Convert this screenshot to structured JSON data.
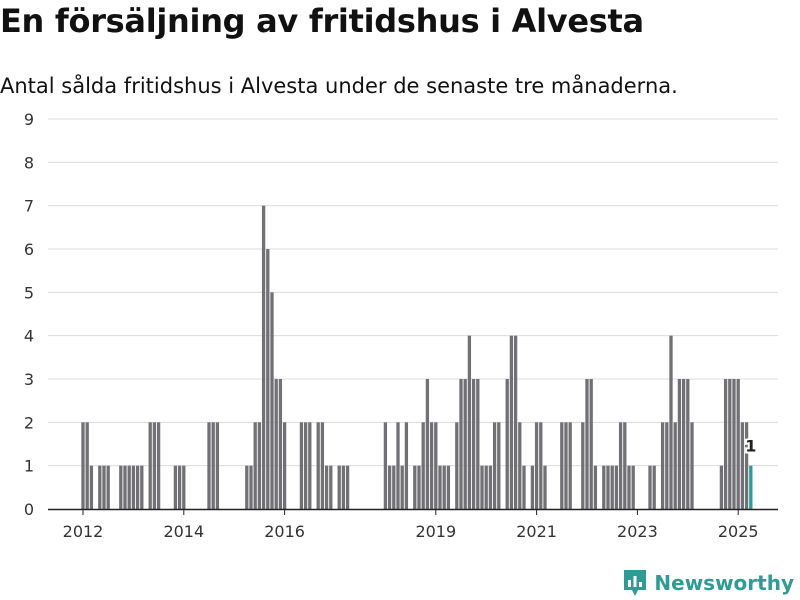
{
  "header": {
    "title": "En försäljning av fritidshus i Alvesta",
    "subtitle": "Antal sålda fritidshus i Alvesta under de senaste tre månaderna."
  },
  "brand": {
    "name": "Newsworthy",
    "icon": "chart-logo-icon",
    "color": "#2e9b95"
  },
  "chart_data": {
    "type": "bar",
    "title": "En försäljning av fritidshus i Alvesta",
    "subtitle": "Antal sålda fritidshus i Alvesta under de senaste tre månaderna.",
    "xlabel": "",
    "ylabel": "",
    "ylim": [
      0,
      9
    ],
    "yticks": [
      0,
      1,
      2,
      3,
      4,
      5,
      6,
      7,
      8,
      9
    ],
    "xticks": [
      "2012",
      "2014",
      "2016",
      "2019",
      "2021",
      "2023",
      "2025"
    ],
    "grid": true,
    "colors": {
      "bar": "#717175",
      "highlight": "#2a9d98",
      "grid": "#dcdcdc"
    },
    "highlight_label": "1",
    "series": [
      {
        "values": [
          [
            "2012-01",
            2
          ],
          [
            "2012-02",
            2
          ],
          [
            "2012-03",
            1
          ],
          [
            "2012-04",
            0
          ],
          [
            "2012-05",
            1
          ],
          [
            "2012-06",
            1
          ],
          [
            "2012-07",
            1
          ],
          [
            "2012-08",
            0
          ],
          [
            "2012-09",
            0
          ],
          [
            "2012-10",
            1
          ],
          [
            "2012-11",
            1
          ],
          [
            "2012-12",
            1
          ],
          [
            "2013-01",
            1
          ],
          [
            "2013-02",
            1
          ],
          [
            "2013-03",
            1
          ],
          [
            "2013-04",
            0
          ],
          [
            "2013-05",
            2
          ],
          [
            "2013-06",
            2
          ],
          [
            "2013-07",
            2
          ],
          [
            "2013-08",
            0
          ],
          [
            "2013-09",
            0
          ],
          [
            "2013-10",
            0
          ],
          [
            "2013-11",
            1
          ],
          [
            "2013-12",
            1
          ],
          [
            "2014-01",
            1
          ],
          [
            "2014-02",
            0
          ],
          [
            "2014-03",
            0
          ],
          [
            "2014-04",
            0
          ],
          [
            "2014-05",
            0
          ],
          [
            "2014-06",
            0
          ],
          [
            "2014-07",
            2
          ],
          [
            "2014-08",
            2
          ],
          [
            "2014-09",
            2
          ],
          [
            "2014-10",
            0
          ],
          [
            "2014-11",
            0
          ],
          [
            "2014-12",
            0
          ],
          [
            "2015-01",
            0
          ],
          [
            "2015-02",
            0
          ],
          [
            "2015-03",
            0
          ],
          [
            "2015-04",
            1
          ],
          [
            "2015-05",
            1
          ],
          [
            "2015-06",
            2
          ],
          [
            "2015-07",
            2
          ],
          [
            "2015-08",
            7
          ],
          [
            "2015-09",
            6
          ],
          [
            "2015-10",
            5
          ],
          [
            "2015-11",
            3
          ],
          [
            "2015-12",
            3
          ],
          [
            "2016-01",
            2
          ],
          [
            "2016-02",
            0
          ],
          [
            "2016-03",
            0
          ],
          [
            "2016-04",
            0
          ],
          [
            "2016-05",
            2
          ],
          [
            "2016-06",
            2
          ],
          [
            "2016-07",
            2
          ],
          [
            "2016-08",
            0
          ],
          [
            "2016-09",
            2
          ],
          [
            "2016-10",
            2
          ],
          [
            "2016-11",
            1
          ],
          [
            "2016-12",
            1
          ],
          [
            "2017-01",
            0
          ],
          [
            "2017-02",
            1
          ],
          [
            "2017-03",
            1
          ],
          [
            "2017-04",
            1
          ],
          [
            "2017-05",
            0
          ],
          [
            "2017-06",
            0
          ],
          [
            "2017-07",
            0
          ],
          [
            "2017-08",
            0
          ],
          [
            "2017-09",
            0
          ],
          [
            "2017-10",
            0
          ],
          [
            "2017-11",
            0
          ],
          [
            "2017-12",
            0
          ],
          [
            "2018-01",
            2
          ],
          [
            "2018-02",
            1
          ],
          [
            "2018-03",
            1
          ],
          [
            "2018-04",
            2
          ],
          [
            "2018-05",
            1
          ],
          [
            "2018-06",
            2
          ],
          [
            "2018-07",
            0
          ],
          [
            "2018-08",
            1
          ],
          [
            "2018-09",
            1
          ],
          [
            "2018-10",
            2
          ],
          [
            "2018-11",
            3
          ],
          [
            "2018-12",
            2
          ],
          [
            "2019-01",
            2
          ],
          [
            "2019-02",
            1
          ],
          [
            "2019-03",
            1
          ],
          [
            "2019-04",
            1
          ],
          [
            "2019-05",
            0
          ],
          [
            "2019-06",
            2
          ],
          [
            "2019-07",
            3
          ],
          [
            "2019-08",
            3
          ],
          [
            "2019-09",
            4
          ],
          [
            "2019-10",
            3
          ],
          [
            "2019-11",
            3
          ],
          [
            "2019-12",
            1
          ],
          [
            "2020-01",
            1
          ],
          [
            "2020-02",
            1
          ],
          [
            "2020-03",
            2
          ],
          [
            "2020-04",
            2
          ],
          [
            "2020-05",
            0
          ],
          [
            "2020-06",
            3
          ],
          [
            "2020-07",
            4
          ],
          [
            "2020-08",
            4
          ],
          [
            "2020-09",
            2
          ],
          [
            "2020-10",
            1
          ],
          [
            "2020-11",
            0
          ],
          [
            "2020-12",
            1
          ],
          [
            "2021-01",
            2
          ],
          [
            "2021-02",
            2
          ],
          [
            "2021-03",
            1
          ],
          [
            "2021-04",
            0
          ],
          [
            "2021-05",
            0
          ],
          [
            "2021-06",
            0
          ],
          [
            "2021-07",
            2
          ],
          [
            "2021-08",
            2
          ],
          [
            "2021-09",
            2
          ],
          [
            "2021-10",
            0
          ],
          [
            "2021-11",
            0
          ],
          [
            "2021-12",
            2
          ],
          [
            "2022-01",
            3
          ],
          [
            "2022-02",
            3
          ],
          [
            "2022-03",
            1
          ],
          [
            "2022-04",
            0
          ],
          [
            "2022-05",
            1
          ],
          [
            "2022-06",
            1
          ],
          [
            "2022-07",
            1
          ],
          [
            "2022-08",
            1
          ],
          [
            "2022-09",
            2
          ],
          [
            "2022-10",
            2
          ],
          [
            "2022-11",
            1
          ],
          [
            "2022-12",
            1
          ],
          [
            "2023-01",
            0
          ],
          [
            "2023-02",
            0
          ],
          [
            "2023-03",
            0
          ],
          [
            "2023-04",
            1
          ],
          [
            "2023-05",
            1
          ],
          [
            "2023-06",
            0
          ],
          [
            "2023-07",
            2
          ],
          [
            "2023-08",
            2
          ],
          [
            "2023-09",
            4
          ],
          [
            "2023-10",
            2
          ],
          [
            "2023-11",
            3
          ],
          [
            "2023-12",
            3
          ],
          [
            "2024-01",
            3
          ],
          [
            "2024-02",
            2
          ],
          [
            "2024-03",
            0
          ],
          [
            "2024-04",
            0
          ],
          [
            "2024-05",
            0
          ],
          [
            "2024-06",
            0
          ],
          [
            "2024-07",
            0
          ],
          [
            "2024-08",
            0
          ],
          [
            "2024-09",
            1
          ],
          [
            "2024-10",
            3
          ],
          [
            "2024-11",
            3
          ],
          [
            "2024-12",
            3
          ],
          [
            "2025-01",
            3
          ],
          [
            "2025-02",
            2
          ],
          [
            "2025-03",
            2
          ],
          [
            "2025-04",
            1
          ]
        ]
      }
    ]
  }
}
